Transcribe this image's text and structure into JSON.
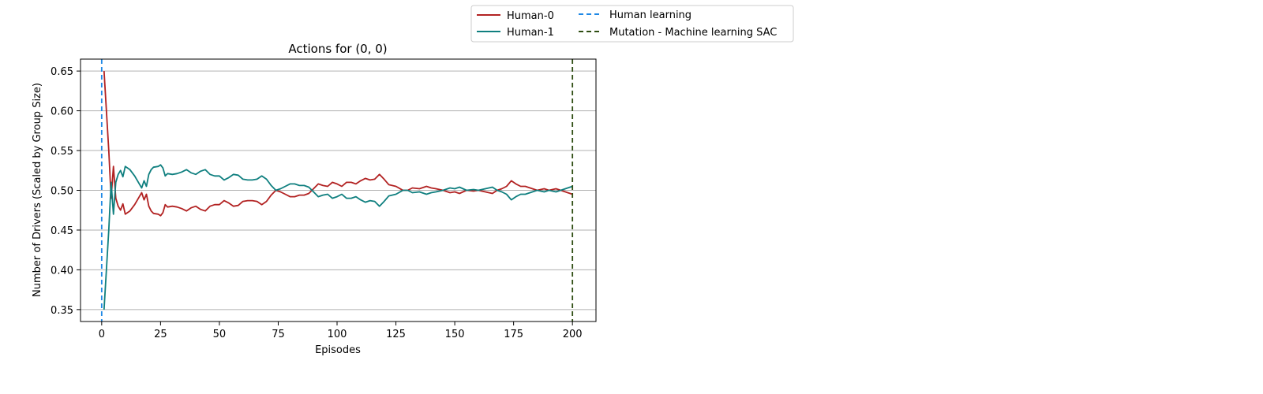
{
  "chart_data": {
    "type": "line",
    "title": "Actions for (0, 0)",
    "xlabel": "Episodes",
    "ylabel": "Number of Drivers (Scaled by Group Size)",
    "xlim": [
      -9,
      210
    ],
    "ylim": [
      0.335,
      0.665
    ],
    "xticks": [
      0,
      25,
      50,
      75,
      100,
      125,
      150,
      175,
      200
    ],
    "yticks": [
      0.35,
      0.4,
      0.45,
      0.5,
      0.55,
      0.6,
      0.65
    ],
    "grid": "horizontal",
    "legend_position": "top-center",
    "series": [
      {
        "name": "Human-0",
        "color": "#b22222",
        "points": [
          [
            1,
            0.65
          ],
          [
            2,
            0.6
          ],
          [
            3,
            0.55
          ],
          [
            4,
            0.49
          ],
          [
            5,
            0.53
          ],
          [
            6,
            0.49
          ],
          [
            7,
            0.48
          ],
          [
            8,
            0.475
          ],
          [
            9,
            0.483
          ],
          [
            10,
            0.47
          ],
          [
            12,
            0.474
          ],
          [
            14,
            0.482
          ],
          [
            16,
            0.492
          ],
          [
            17,
            0.497
          ],
          [
            18,
            0.488
          ],
          [
            19,
            0.495
          ],
          [
            20,
            0.48
          ],
          [
            21,
            0.474
          ],
          [
            22,
            0.471
          ],
          [
            24,
            0.47
          ],
          [
            25,
            0.468
          ],
          [
            26,
            0.472
          ],
          [
            27,
            0.482
          ],
          [
            28,
            0.479
          ],
          [
            30,
            0.48
          ],
          [
            32,
            0.479
          ],
          [
            34,
            0.477
          ],
          [
            36,
            0.474
          ],
          [
            38,
            0.478
          ],
          [
            40,
            0.48
          ],
          [
            42,
            0.476
          ],
          [
            44,
            0.474
          ],
          [
            46,
            0.48
          ],
          [
            48,
            0.482
          ],
          [
            50,
            0.482
          ],
          [
            52,
            0.487
          ],
          [
            54,
            0.484
          ],
          [
            56,
            0.48
          ],
          [
            58,
            0.481
          ],
          [
            60,
            0.486
          ],
          [
            62,
            0.487
          ],
          [
            64,
            0.487
          ],
          [
            66,
            0.486
          ],
          [
            68,
            0.482
          ],
          [
            70,
            0.486
          ],
          [
            72,
            0.494
          ],
          [
            74,
            0.5
          ],
          [
            76,
            0.498
          ],
          [
            78,
            0.495
          ],
          [
            80,
            0.492
          ],
          [
            82,
            0.492
          ],
          [
            84,
            0.494
          ],
          [
            86,
            0.494
          ],
          [
            88,
            0.496
          ],
          [
            90,
            0.502
          ],
          [
            92,
            0.508
          ],
          [
            94,
            0.506
          ],
          [
            96,
            0.505
          ],
          [
            98,
            0.51
          ],
          [
            100,
            0.508
          ],
          [
            102,
            0.505
          ],
          [
            104,
            0.51
          ],
          [
            106,
            0.51
          ],
          [
            108,
            0.508
          ],
          [
            110,
            0.512
          ],
          [
            112,
            0.515
          ],
          [
            114,
            0.513
          ],
          [
            116,
            0.514
          ],
          [
            118,
            0.52
          ],
          [
            120,
            0.514
          ],
          [
            122,
            0.507
          ],
          [
            125,
            0.505
          ],
          [
            128,
            0.5
          ],
          [
            130,
            0.5
          ],
          [
            132,
            0.503
          ],
          [
            135,
            0.502
          ],
          [
            138,
            0.505
          ],
          [
            140,
            0.503
          ],
          [
            142,
            0.502
          ],
          [
            145,
            0.5
          ],
          [
            148,
            0.497
          ],
          [
            150,
            0.498
          ],
          [
            152,
            0.496
          ],
          [
            155,
            0.5
          ],
          [
            158,
            0.499
          ],
          [
            160,
            0.5
          ],
          [
            163,
            0.498
          ],
          [
            166,
            0.496
          ],
          [
            168,
            0.5
          ],
          [
            170,
            0.502
          ],
          [
            172,
            0.505
          ],
          [
            174,
            0.512
          ],
          [
            176,
            0.508
          ],
          [
            178,
            0.505
          ],
          [
            180,
            0.505
          ],
          [
            182,
            0.503
          ],
          [
            185,
            0.5
          ],
          [
            188,
            0.502
          ],
          [
            190,
            0.5
          ],
          [
            193,
            0.502
          ],
          [
            196,
            0.499
          ],
          [
            198,
            0.497
          ],
          [
            200,
            0.495
          ]
        ]
      },
      {
        "name": "Human-1",
        "color": "#0f7f7f",
        "points": [
          [
            1,
            0.35
          ],
          [
            2,
            0.4
          ],
          [
            3,
            0.45
          ],
          [
            4,
            0.51
          ],
          [
            5,
            0.47
          ],
          [
            6,
            0.51
          ],
          [
            7,
            0.52
          ],
          [
            8,
            0.525
          ],
          [
            9,
            0.517
          ],
          [
            10,
            0.53
          ],
          [
            12,
            0.526
          ],
          [
            14,
            0.518
          ],
          [
            16,
            0.508
          ],
          [
            17,
            0.503
          ],
          [
            18,
            0.512
          ],
          [
            19,
            0.505
          ],
          [
            20,
            0.52
          ],
          [
            21,
            0.526
          ],
          [
            22,
            0.529
          ],
          [
            24,
            0.53
          ],
          [
            25,
            0.532
          ],
          [
            26,
            0.528
          ],
          [
            27,
            0.518
          ],
          [
            28,
            0.521
          ],
          [
            30,
            0.52
          ],
          [
            32,
            0.521
          ],
          [
            34,
            0.523
          ],
          [
            36,
            0.526
          ],
          [
            38,
            0.522
          ],
          [
            40,
            0.52
          ],
          [
            42,
            0.524
          ],
          [
            44,
            0.526
          ],
          [
            46,
            0.52
          ],
          [
            48,
            0.518
          ],
          [
            50,
            0.518
          ],
          [
            52,
            0.513
          ],
          [
            54,
            0.516
          ],
          [
            56,
            0.52
          ],
          [
            58,
            0.519
          ],
          [
            60,
            0.514
          ],
          [
            62,
            0.513
          ],
          [
            64,
            0.513
          ],
          [
            66,
            0.514
          ],
          [
            68,
            0.518
          ],
          [
            70,
            0.514
          ],
          [
            72,
            0.506
          ],
          [
            74,
            0.5
          ],
          [
            76,
            0.502
          ],
          [
            78,
            0.505
          ],
          [
            80,
            0.508
          ],
          [
            82,
            0.508
          ],
          [
            84,
            0.506
          ],
          [
            86,
            0.506
          ],
          [
            88,
            0.504
          ],
          [
            90,
            0.498
          ],
          [
            92,
            0.492
          ],
          [
            94,
            0.494
          ],
          [
            96,
            0.495
          ],
          [
            98,
            0.49
          ],
          [
            100,
            0.492
          ],
          [
            102,
            0.495
          ],
          [
            104,
            0.49
          ],
          [
            106,
            0.49
          ],
          [
            108,
            0.492
          ],
          [
            110,
            0.488
          ],
          [
            112,
            0.485
          ],
          [
            114,
            0.487
          ],
          [
            116,
            0.486
          ],
          [
            118,
            0.48
          ],
          [
            120,
            0.486
          ],
          [
            122,
            0.493
          ],
          [
            125,
            0.495
          ],
          [
            128,
            0.5
          ],
          [
            130,
            0.5
          ],
          [
            132,
            0.497
          ],
          [
            135,
            0.498
          ],
          [
            138,
            0.495
          ],
          [
            140,
            0.497
          ],
          [
            142,
            0.498
          ],
          [
            145,
            0.5
          ],
          [
            148,
            0.503
          ],
          [
            150,
            0.502
          ],
          [
            152,
            0.504
          ],
          [
            155,
            0.5
          ],
          [
            158,
            0.501
          ],
          [
            160,
            0.5
          ],
          [
            163,
            0.502
          ],
          [
            166,
            0.504
          ],
          [
            168,
            0.5
          ],
          [
            170,
            0.498
          ],
          [
            172,
            0.495
          ],
          [
            174,
            0.488
          ],
          [
            176,
            0.492
          ],
          [
            178,
            0.495
          ],
          [
            180,
            0.495
          ],
          [
            182,
            0.497
          ],
          [
            185,
            0.5
          ],
          [
            188,
            0.498
          ],
          [
            190,
            0.5
          ],
          [
            193,
            0.498
          ],
          [
            196,
            0.501
          ],
          [
            198,
            0.503
          ],
          [
            200,
            0.505
          ]
        ]
      }
    ],
    "vlines": [
      {
        "name": "Human learning",
        "x": 0,
        "color": "#1e88e5",
        "style": "dashed"
      },
      {
        "name": "Mutation - Machine learning SAC",
        "x": 200,
        "color": "#2e4d12",
        "style": "dashed"
      }
    ]
  }
}
